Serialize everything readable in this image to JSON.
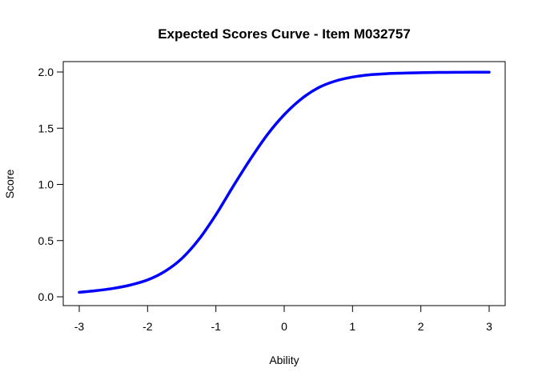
{
  "chart_data": {
    "type": "line",
    "title": "Expected Scores Curve - Item  M032757",
    "xlabel": "Ability",
    "ylabel": "Score",
    "xlim": [
      -3,
      3
    ],
    "ylim": [
      0,
      2
    ],
    "x_ticks": [
      "-3",
      "-2",
      "-1",
      "0",
      "1",
      "2",
      "3"
    ],
    "y_ticks": [
      "0.0",
      "0.5",
      "1.0",
      "1.5",
      "2.0"
    ],
    "grid": false,
    "legend": "none",
    "series": [
      {
        "color": "#0000ff",
        "x": [
          -3.0,
          -2.75,
          -2.5,
          -2.25,
          -2.0,
          -1.75,
          -1.5,
          -1.25,
          -1.0,
          -0.75,
          -0.5,
          -0.25,
          0.0,
          0.25,
          0.5,
          0.75,
          1.0,
          1.25,
          1.5,
          1.75,
          2.0,
          2.25,
          2.5,
          2.75,
          3.0
        ],
        "values": [
          0.04,
          0.055,
          0.075,
          0.105,
          0.15,
          0.225,
          0.34,
          0.51,
          0.73,
          0.98,
          1.22,
          1.44,
          1.62,
          1.76,
          1.86,
          1.92,
          1.955,
          1.975,
          1.985,
          1.99,
          1.994,
          1.996,
          1.997,
          1.998,
          1.998
        ]
      }
    ]
  }
}
